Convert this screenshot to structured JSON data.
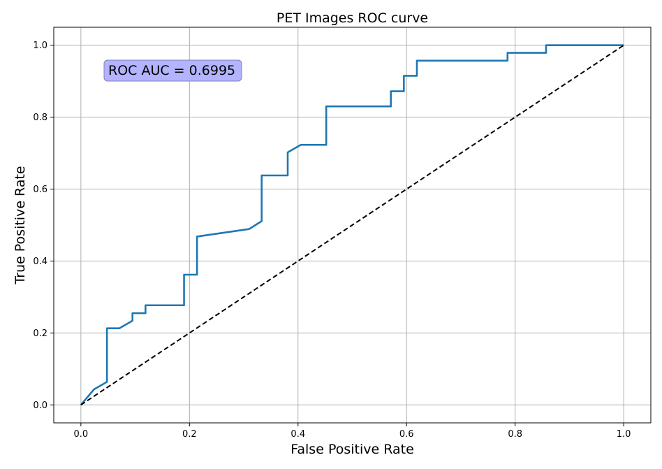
{
  "chart_data": {
    "type": "line",
    "title": "PET Images ROC curve",
    "xlabel": "False Positive Rate",
    "ylabel": "True Positive Rate",
    "xlim": [
      -0.05,
      1.05
    ],
    "ylim": [
      -0.05,
      1.05
    ],
    "x_ticks": [
      0.0,
      0.2,
      0.4,
      0.6,
      0.8,
      1.0
    ],
    "y_ticks": [
      0.0,
      0.2,
      0.4,
      0.6,
      0.8,
      1.0
    ],
    "x_tick_labels": [
      "0.0",
      "0.2",
      "0.4",
      "0.6",
      "0.8",
      "1.0"
    ],
    "y_tick_labels": [
      "0.0",
      "0.2",
      "0.4",
      "0.6",
      "0.8",
      "1.0"
    ],
    "grid": true,
    "annotation": "ROC AUC = 0.6995",
    "series": [
      {
        "color": "#1f77b4",
        "style": "solid",
        "x": [
          0.0,
          0.024,
          0.048,
          0.048,
          0.071,
          0.095,
          0.095,
          0.119,
          0.119,
          0.19,
          0.19,
          0.214,
          0.214,
          0.31,
          0.333,
          0.333,
          0.381,
          0.381,
          0.405,
          0.452,
          0.452,
          0.571,
          0.571,
          0.595,
          0.595,
          0.619,
          0.619,
          0.786,
          0.786,
          0.857,
          0.857,
          1.0
        ],
        "y": [
          0.0,
          0.043,
          0.064,
          0.213,
          0.213,
          0.234,
          0.255,
          0.255,
          0.277,
          0.277,
          0.362,
          0.362,
          0.468,
          0.489,
          0.511,
          0.638,
          0.638,
          0.702,
          0.723,
          0.723,
          0.83,
          0.83,
          0.872,
          0.872,
          0.915,
          0.915,
          0.957,
          0.957,
          0.979,
          0.979,
          1.0,
          1.0
        ]
      },
      {
        "color": "#000000",
        "style": "dashed",
        "x": [
          0.0,
          1.0
        ],
        "y": [
          0.0,
          1.0
        ]
      }
    ],
    "colors": {
      "grid": "#b0b0b0",
      "annotation_fill": "#b3b3ff",
      "annotation_border": "#8080b3"
    }
  }
}
